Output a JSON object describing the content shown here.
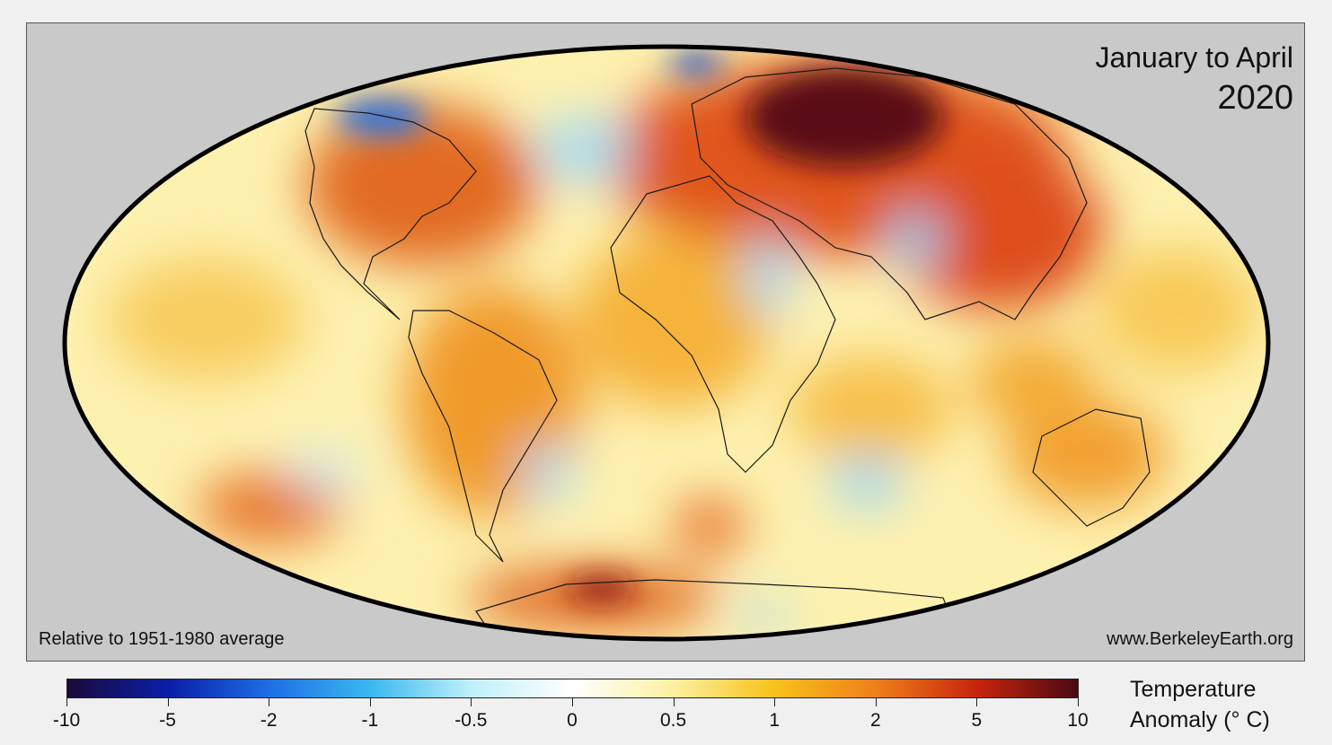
{
  "title": {
    "period": "January to April",
    "year": "2020"
  },
  "notes": {
    "baseline": "Relative to 1951-1980 average",
    "source": "www.BerkeleyEarth.org"
  },
  "colorbar": {
    "title_line1": "Temperature",
    "title_line2": "Anomaly (° C)",
    "tick_labels": [
      "-10",
      "-5",
      "-2",
      "-1",
      "-0.5",
      "0",
      "0.5",
      "1",
      "2",
      "5",
      "10"
    ],
    "colors": [
      "#1a0a3a",
      "#0a1ea8",
      "#1e6ee6",
      "#3ab8ef",
      "#bff0fb",
      "#ffffff",
      "#fdf0a0",
      "#f8c21a",
      "#ef7f1a",
      "#c8240e",
      "#4a0a12"
    ]
  },
  "map": {
    "projection": "Mollweide",
    "background_color": "#c9c9c9",
    "colors": {
      "mild_warm": "#fdf3b4",
      "warm": "#f9c742",
      "hot": "#ef8a26",
      "very_hot": "#d94018",
      "extreme": "#6a0c14",
      "cool": "#8fd4f4",
      "cold": "#1e5fd6"
    }
  }
}
